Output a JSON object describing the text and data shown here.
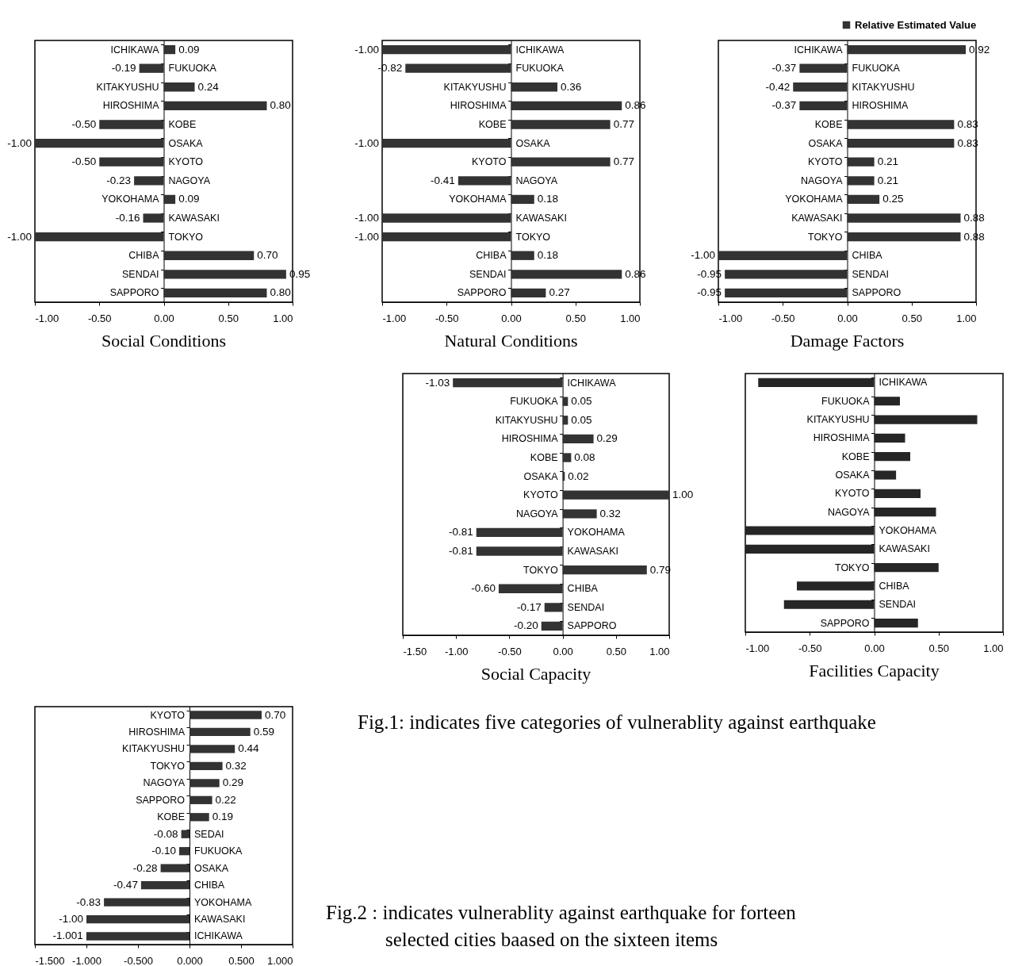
{
  "chart_data": [
    {
      "type": "bar",
      "orientation": "horizontal",
      "title": "Social Conditions",
      "color": "#333333",
      "xlim": [
        -1,
        1
      ],
      "xticks": [
        {
          "value": -1,
          "label": "-1.00"
        },
        {
          "value": -0.5,
          "label": "-0.50"
        },
        {
          "value": 0,
          "label": "0.00"
        },
        {
          "value": 0.5,
          "label": "0.50"
        },
        {
          "value": 1,
          "label": "1.00"
        }
      ],
      "categories": [
        "ICHIKAWA",
        "FUKUOKA",
        "KITAKYUSHU",
        "HIROSHIMA",
        "KOBE",
        "OSAKA",
        "KYOTO",
        "NAGOYA",
        "YOKOHAMA",
        "KAWASAKI",
        "TOKYO",
        "CHIBA",
        "SENDAI",
        "SAPPORO"
      ],
      "values": [
        0.09,
        -0.19,
        0.24,
        0.8,
        -0.5,
        -1.0,
        -0.5,
        -0.23,
        0.09,
        -0.16,
        -1.0,
        0.7,
        0.95,
        0.8
      ],
      "value_labels": [
        "0.09",
        "-0.19",
        "0.24",
        "0.80",
        "-0.50",
        "-1.00",
        "-0.50",
        "-0.23",
        "0.09",
        "-0.16",
        "-1.00",
        "0.70",
        "0.95",
        "0.80"
      ]
    },
    {
      "type": "bar",
      "orientation": "horizontal",
      "title": "Natural Conditions",
      "color": "#333333",
      "xlim": [
        -1,
        1
      ],
      "xticks": [
        {
          "value": -1,
          "label": "-1.00"
        },
        {
          "value": -0.5,
          "label": "-0.50"
        },
        {
          "value": 0,
          "label": "0.00"
        },
        {
          "value": 0.5,
          "label": "0.50"
        },
        {
          "value": 1,
          "label": "1.00"
        }
      ],
      "categories": [
        "ICHIKAWA",
        "FUKUOKA",
        "KITAKYUSHU",
        "HIROSHIMA",
        "KOBE",
        "OSAKA",
        "KYOTO",
        "NAGOYA",
        "YOKOHAMA",
        "KAWASAKI",
        "TOKYO",
        "CHIBA",
        "SENDAI",
        "SAPPORO"
      ],
      "values": [
        -1.0,
        -0.82,
        0.36,
        0.86,
        0.77,
        -1.0,
        0.77,
        -0.41,
        0.18,
        -1.0,
        -1.0,
        0.18,
        0.86,
        0.27
      ],
      "value_labels": [
        "-1.00",
        "-0.82",
        "0.36",
        "0.86",
        "0.77",
        "-1.00",
        "0.77",
        "-0.41",
        "0.18",
        "-1.00",
        "-1.00",
        "0.18",
        "0.86",
        "0.27"
      ]
    },
    {
      "type": "bar",
      "orientation": "horizontal",
      "title": "Damage Factors",
      "legend": "top right",
      "xlim": [
        -1,
        1
      ],
      "xticks": [
        {
          "value": -1,
          "label": "-1.00"
        },
        {
          "value": -0.5,
          "label": "-0.50"
        },
        {
          "value": 0,
          "label": "0.00"
        },
        {
          "value": 0.5,
          "label": "0.50"
        },
        {
          "value": 1,
          "label": "1.00"
        }
      ],
      "categories": [
        "ICHIKAWA",
        "FUKUOKA",
        "KITAKYUSHU",
        "HIROSHIMA",
        "KOBE",
        "OSAKA",
        "KYOTO",
        "NAGOYA",
        "YOKOHAMA",
        "KAWASAKI",
        "TOKYO",
        "CHIBA",
        "SENDAI",
        "SAPPORO"
      ],
      "series": [
        {
          "name": "Relative Estimated Value",
          "color": "#333333",
          "values": [
            0.92,
            -0.37,
            -0.42,
            -0.37,
            0.83,
            0.83,
            0.21,
            0.21,
            0.25,
            0.88,
            0.88,
            -1.0,
            -0.95,
            -0.95
          ],
          "value_labels": [
            "0.92",
            "-0.37",
            "-0.42",
            "-0.37",
            "0.83",
            "0.83",
            "0.21",
            "0.21",
            "0.25",
            "0.88",
            "0.88",
            "-1.00",
            "-0.95",
            "-0.95"
          ]
        }
      ]
    },
    {
      "type": "bar",
      "orientation": "horizontal",
      "title": "Social Capacity",
      "color": "#333333",
      "xlim": [
        -1.5,
        1
      ],
      "xticks": [
        {
          "value": -1.5,
          "label": "-1.50"
        },
        {
          "value": -1,
          "label": "-1.00"
        },
        {
          "value": -0.5,
          "label": "-0.50"
        },
        {
          "value": 0,
          "label": "0.00"
        },
        {
          "value": 0.5,
          "label": "0.50"
        },
        {
          "value": 1,
          "label": "1.00"
        }
      ],
      "categories": [
        "ICHIKAWA",
        "FUKUOKA",
        "KITAKYUSHU",
        "HIROSHIMA",
        "KOBE",
        "OSAKA",
        "KYOTO",
        "NAGOYA",
        "YOKOHAMA",
        "KAWASAKI",
        "TOKYO",
        "CHIBA",
        "SENDAI",
        "SAPPORO"
      ],
      "values": [
        -1.03,
        0.05,
        0.05,
        0.29,
        0.08,
        0.02,
        1.0,
        0.32,
        -0.81,
        -0.81,
        0.79,
        -0.6,
        -0.17,
        -0.2
      ],
      "value_labels": [
        "-1.03",
        "0.05",
        "0.05",
        "0.29",
        "0.08",
        "0.02",
        "1.00",
        "0.32",
        "-0.81",
        "-0.81",
        "0.79",
        "-0.60",
        "-0.17",
        "-0.20"
      ],
      "annotations": [
        "Fig.1: indicates five categories of vulnerablity against earthquake"
      ]
    },
    {
      "type": "bar",
      "orientation": "horizontal",
      "title": "Facilities Capacity",
      "color": "#262626",
      "xlim": [
        -1,
        1
      ],
      "xticks": [
        {
          "value": -1,
          "label": "-1.00"
        },
        {
          "value": -0.5,
          "label": "-0.50"
        },
        {
          "value": 0,
          "label": "0.00"
        },
        {
          "value": 0.5,
          "label": "0.50"
        },
        {
          "value": 1,
          "label": "1.00"
        }
      ],
      "categories": [
        "ICHIKAWA",
        "FUKUOKA",
        "KITAKYUSHU",
        "HIROSHIMA",
        "KOBE",
        "OSAKA",
        "KYOTO",
        "NAGOYA",
        "YOKOHAMA",
        "KAWASAKI",
        "TOKYO",
        "CHIBA",
        "SENDAI",
        "SAPPORO"
      ],
      "values": [
        -0.9,
        0.2,
        0.8,
        0.24,
        0.28,
        0.17,
        0.36,
        0.48,
        -1.0,
        -1.0,
        0.5,
        -0.6,
        -0.7,
        0.34
      ]
    },
    {
      "type": "bar",
      "orientation": "horizontal",
      "color": "#333333",
      "xlim": [
        -1.5,
        1
      ],
      "xticks": [
        {
          "value": -1.5,
          "label": "-1.500"
        },
        {
          "value": -1,
          "label": "-1.000"
        },
        {
          "value": -0.5,
          "label": "-0.500"
        },
        {
          "value": 0,
          "label": "0.000"
        },
        {
          "value": 0.5,
          "label": "0.500"
        },
        {
          "value": 1,
          "label": "1.000"
        }
      ],
      "categories": [
        "KYOTO",
        "HIROSHIMA",
        "KITAKYUSHU",
        "TOKYO",
        "NAGOYA",
        "SAPPORO",
        "KOBE",
        "SEDAI",
        "FUKUOKA",
        "OSAKA",
        "CHIBA",
        "YOKOHAMA",
        "KAWASAKI",
        "ICHIKAWA"
      ],
      "values": [
        0.7,
        0.59,
        0.44,
        0.32,
        0.29,
        0.22,
        0.19,
        -0.08,
        -0.1,
        -0.28,
        -0.47,
        -0.83,
        -1.0,
        -1.001
      ],
      "value_labels": [
        "0.70",
        "0.59",
        "0.44",
        "0.32",
        "0.29",
        "0.22",
        "0.19",
        "-0.08",
        "-0.10",
        "-0.28",
        "-0.47",
        "-0.83",
        "-1.00",
        "-1.001"
      ],
      "annotations": [
        "Fig.2 : indicates vulnerablity against earthquake for forteen",
        "selected cities baased on the sixteen items"
      ]
    }
  ]
}
